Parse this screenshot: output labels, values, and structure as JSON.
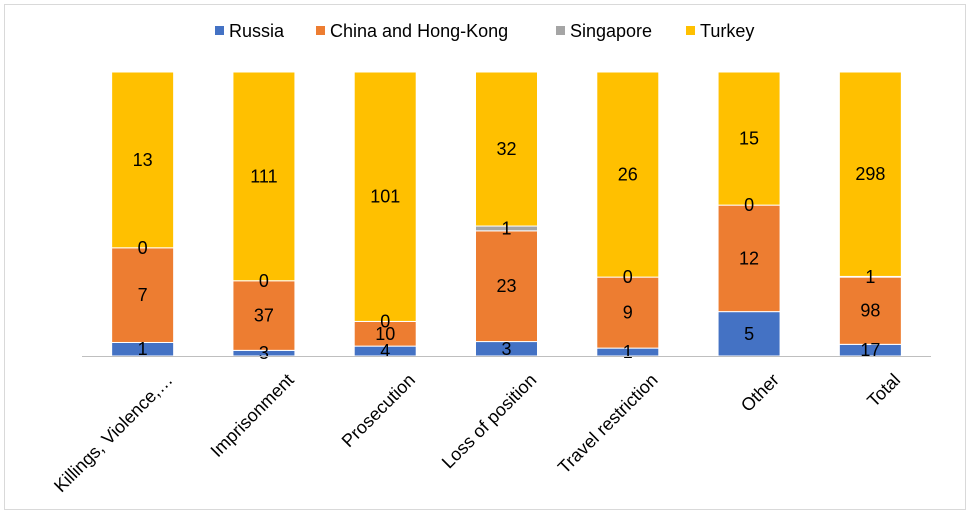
{
  "chart_data": {
    "type": "bar",
    "stacked": true,
    "title": "",
    "xlabel": "",
    "ylabel": "",
    "categories": [
      "Killings, Violence,…",
      "Imprisonment",
      "Prosecution",
      "Loss of position",
      "Travel restriction",
      "Other",
      "Total"
    ],
    "series": [
      {
        "name": "Russia",
        "color": "#4472c4",
        "values": [
          1,
          3,
          4,
          3,
          1,
          5,
          17
        ]
      },
      {
        "name": "China and Hong-Kong",
        "color": "#ed7d31",
        "values": [
          7,
          37,
          10,
          23,
          9,
          12,
          98
        ]
      },
      {
        "name": "Singapore",
        "color": "#a5a5a5",
        "values": [
          0,
          0,
          0,
          1,
          0,
          0,
          1
        ]
      },
      {
        "name": "Turkey",
        "color": "#ffc000",
        "values": [
          13,
          111,
          101,
          32,
          26,
          15,
          298
        ]
      }
    ],
    "normalized": true,
    "ylim": [
      0,
      100
    ],
    "grid": false,
    "legend": "top"
  }
}
